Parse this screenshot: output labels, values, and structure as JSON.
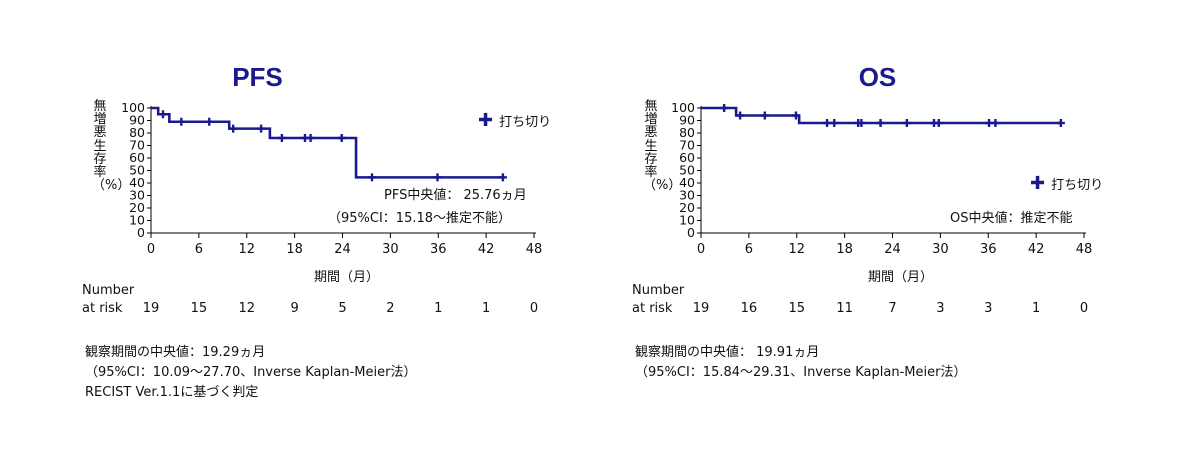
{
  "chart_data": [
    {
      "type": "line",
      "title": "PFS",
      "ylabel": "無増悪生存率（%）",
      "xlabel": "期間（月）",
      "xlim": [
        0,
        48
      ],
      "ylim": [
        0,
        100
      ],
      "xticks": [
        0,
        6,
        12,
        18,
        24,
        30,
        36,
        42,
        48
      ],
      "yticks": [
        0,
        10,
        20,
        30,
        40,
        50,
        60,
        70,
        80,
        90,
        100
      ],
      "line_color": "#1a1a8c",
      "series": [
        {
          "step_x": [
            0,
            0.9,
            2.0,
            2.3,
            3.9,
            9.8,
            14.9,
            25.7,
            44.2
          ],
          "step_y": [
            100,
            95,
            95,
            89,
            89,
            83.5,
            76,
            44.5,
            44.5
          ],
          "censored": [
            {
              "x": 1.5,
              "y": 95
            },
            {
              "x": 3.8,
              "y": 89
            },
            {
              "x": 7.3,
              "y": 89
            },
            {
              "x": 10.3,
              "y": 83.5
            },
            {
              "x": 13.8,
              "y": 83.5
            },
            {
              "x": 16.4,
              "y": 76
            },
            {
              "x": 19.3,
              "y": 76
            },
            {
              "x": 20.0,
              "y": 76
            },
            {
              "x": 23.9,
              "y": 76
            },
            {
              "x": 27.7,
              "y": 44.5
            },
            {
              "x": 35.9,
              "y": 44.5
            },
            {
              "x": 44.1,
              "y": 44.5
            }
          ]
        }
      ],
      "legend": "打ち切り",
      "median_label": "PFS中央値： 25.76ヵ月",
      "median_ci": "（95%CI：15.18～推定不能）",
      "risk_title": "Number\nat risk",
      "risk_values": [
        "19",
        "15",
        "12",
        "9",
        "5",
        "2",
        "1",
        "1",
        "0"
      ],
      "notes": [
        "観察期間の中央値：19.29ヵ月",
        "（95%CI：10.09～27.70、Inverse Kaplan-Meier法）",
        "RECIST Ver.1.1に基づく判定"
      ]
    },
    {
      "type": "line",
      "title": "OS",
      "ylabel": "無増悪生存率（%）",
      "xlabel": "期間（月）",
      "xlim": [
        0,
        48
      ],
      "ylim": [
        0,
        100
      ],
      "xticks": [
        0,
        6,
        12,
        18,
        24,
        30,
        36,
        42,
        48
      ],
      "yticks": [
        0,
        10,
        20,
        30,
        40,
        50,
        60,
        70,
        80,
        90,
        100
      ],
      "line_color": "#1a1a8c",
      "series": [
        {
          "step_x": [
            0,
            4.4,
            12.3,
            45.2
          ],
          "step_y": [
            100,
            94,
            88,
            88
          ],
          "censored": [
            {
              "x": 2.9,
              "y": 100
            },
            {
              "x": 4.9,
              "y": 94
            },
            {
              "x": 8.0,
              "y": 94
            },
            {
              "x": 11.9,
              "y": 94
            },
            {
              "x": 15.8,
              "y": 88
            },
            {
              "x": 16.7,
              "y": 88
            },
            {
              "x": 19.7,
              "y": 88
            },
            {
              "x": 20.1,
              "y": 88
            },
            {
              "x": 22.5,
              "y": 88
            },
            {
              "x": 25.8,
              "y": 88
            },
            {
              "x": 29.2,
              "y": 88
            },
            {
              "x": 29.8,
              "y": 88
            },
            {
              "x": 36.1,
              "y": 88
            },
            {
              "x": 36.9,
              "y": 88
            },
            {
              "x": 45.1,
              "y": 88
            }
          ]
        }
      ],
      "legend": "打ち切り",
      "median_label": "OS中央値：推定不能",
      "risk_title": "Number\nat risk",
      "risk_values": [
        "19",
        "16",
        "15",
        "11",
        "7",
        "3",
        "3",
        "1",
        "0"
      ],
      "notes": [
        "観察期間の中央値： 19.91ヵ月",
        "（95%CI：15.84～29.31、Inverse Kaplan-Meier法）"
      ]
    }
  ]
}
